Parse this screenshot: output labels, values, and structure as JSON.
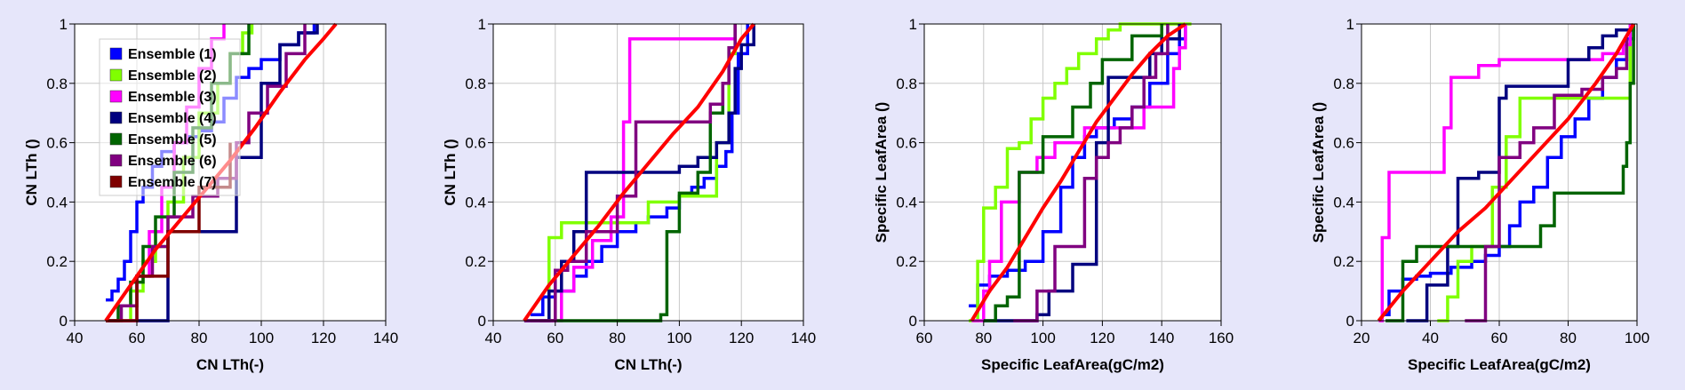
{
  "legend": {
    "entries": [
      {
        "label": "Ensemble (1)",
        "color": "#0000ff"
      },
      {
        "label": "Ensemble (2)",
        "color": "#80ff00"
      },
      {
        "label": "Ensemble (3)",
        "color": "#ff00ff"
      },
      {
        "label": "Ensemble (4)",
        "color": "#00007f"
      },
      {
        "label": "Ensemble (5)",
        "color": "#006400"
      },
      {
        "label": "Ensemble (6)",
        "color": "#800080"
      },
      {
        "label": "Ensemble (7)",
        "color": "#7f0000"
      }
    ]
  },
  "reference_color": "#ff0000",
  "chart_data": [
    {
      "type": "line",
      "xlabel": "CN LTh(-)",
      "ylabel": "CN LTh ()",
      "xlim": [
        40,
        140
      ],
      "ylim": [
        0,
        1
      ],
      "xticks": [
        "40",
        "60",
        "80",
        "100",
        "120",
        "140"
      ],
      "yticks": [
        "0",
        "0.2",
        "0.4",
        "0.6",
        "0.8",
        "1"
      ],
      "grid": true,
      "legend_position": "top-left",
      "series": [
        {
          "color": "#0000ff",
          "x": [
            50,
            52,
            54,
            56,
            58,
            60,
            62,
            65,
            68,
            72,
            76,
            80,
            84,
            88,
            92,
            96,
            100,
            106,
            112,
            117
          ],
          "y": [
            0.07,
            0.1,
            0.14,
            0.2,
            0.3,
            0.4,
            0.45,
            0.52,
            0.57,
            0.6,
            0.62,
            0.64,
            0.67,
            0.75,
            0.82,
            0.85,
            0.88,
            0.93,
            0.97,
            1.0
          ]
        },
        {
          "color": "#80ff00",
          "x": [
            53,
            58,
            62,
            66,
            70,
            75,
            80,
            86,
            90,
            94,
            97
          ],
          "y": [
            0.0,
            0.1,
            0.2,
            0.25,
            0.4,
            0.55,
            0.7,
            0.8,
            0.9,
            0.97,
            1.0
          ]
        },
        {
          "color": "#ff00ff",
          "x": [
            55,
            60,
            64,
            68,
            72,
            76,
            80,
            84,
            88
          ],
          "y": [
            0.0,
            0.15,
            0.3,
            0.45,
            0.6,
            0.72,
            0.85,
            0.95,
            1.0
          ]
        },
        {
          "color": "#00007f",
          "x": [
            60,
            70,
            90,
            92,
            96,
            100,
            106,
            112,
            118
          ],
          "y": [
            0.0,
            0.3,
            0.3,
            0.55,
            0.55,
            0.8,
            0.93,
            0.97,
            1.0
          ]
        },
        {
          "color": "#006400",
          "x": [
            50,
            54,
            58,
            62,
            66,
            72,
            78,
            84,
            90,
            96
          ],
          "y": [
            0.0,
            0.05,
            0.13,
            0.25,
            0.35,
            0.5,
            0.65,
            0.8,
            0.9,
            1.0
          ]
        },
        {
          "color": "#800080",
          "x": [
            50,
            55,
            60,
            65,
            70,
            78,
            86,
            92,
            96,
            102,
            108,
            114
          ],
          "y": [
            0.0,
            0.05,
            0.15,
            0.25,
            0.35,
            0.42,
            0.48,
            0.6,
            0.7,
            0.79,
            0.9,
            1.0
          ]
        },
        {
          "color": "#7f0000",
          "x": [
            50,
            60,
            70,
            80,
            90
          ],
          "y": [
            0.0,
            0.15,
            0.3,
            0.45,
            0.6
          ]
        },
        {
          "color": "#ff0000",
          "x": [
            50,
            58,
            66,
            74,
            82,
            90,
            98,
            106,
            114,
            120,
            124
          ],
          "y": [
            0.0,
            0.12,
            0.24,
            0.34,
            0.44,
            0.54,
            0.65,
            0.77,
            0.88,
            0.95,
            1.0
          ]
        }
      ]
    },
    {
      "type": "line",
      "xlabel": "CN LTh(-)",
      "ylabel": "CN LTh ()",
      "xlim": [
        40,
        140
      ],
      "ylim": [
        0,
        1
      ],
      "xticks": [
        "40",
        "60",
        "80",
        "100",
        "120",
        "140"
      ],
      "yticks": [
        "0",
        "0.2",
        "0.4",
        "0.6",
        "0.8",
        "1"
      ],
      "grid": true,
      "series": [
        {
          "color": "#0000ff",
          "x": [
            52,
            56,
            60,
            66,
            70,
            75,
            80,
            86,
            90,
            96,
            100,
            104,
            108,
            112,
            115,
            117,
            119,
            122
          ],
          "y": [
            0.02,
            0.08,
            0.1,
            0.15,
            0.2,
            0.25,
            0.3,
            0.33,
            0.35,
            0.38,
            0.42,
            0.45,
            0.48,
            0.52,
            0.57,
            0.7,
            0.9,
            1.0
          ]
        },
        {
          "color": "#80ff00",
          "x": [
            52,
            58,
            62,
            66,
            80,
            90,
            100,
            108,
            112,
            116,
            118
          ],
          "y": [
            0.0,
            0.28,
            0.33,
            0.33,
            0.33,
            0.4,
            0.42,
            0.42,
            0.6,
            0.9,
            1.0
          ]
        },
        {
          "color": "#ff00ff",
          "x": [
            55,
            62,
            66,
            72,
            78,
            82,
            84,
            86,
            90,
            100,
            114,
            118
          ],
          "y": [
            0.0,
            0.1,
            0.18,
            0.27,
            0.35,
            0.67,
            0.95,
            0.95,
            0.95,
            0.95,
            0.95,
            1.0
          ]
        },
        {
          "color": "#00007f",
          "x": [
            50,
            58,
            62,
            66,
            70,
            80,
            100,
            106,
            112,
            116,
            118,
            120,
            124
          ],
          "y": [
            0.0,
            0.1,
            0.2,
            0.3,
            0.5,
            0.5,
            0.52,
            0.55,
            0.6,
            0.7,
            0.85,
            0.93,
            1.0
          ]
        },
        {
          "color": "#006400",
          "x": [
            55,
            75,
            94,
            96,
            100,
            106,
            110,
            114,
            116,
            118
          ],
          "y": [
            0.0,
            0.0,
            0.02,
            0.3,
            0.43,
            0.5,
            0.7,
            0.8,
            0.92,
            1.0
          ]
        },
        {
          "color": "#800080",
          "x": [
            50,
            60,
            64,
            70,
            80,
            86,
            96,
            104,
            110,
            114,
            116,
            118
          ],
          "y": [
            0.0,
            0.17,
            0.2,
            0.3,
            0.42,
            0.67,
            0.67,
            0.67,
            0.73,
            0.8,
            0.92,
            1.0
          ]
        },
        {
          "color": "#ff0000",
          "x": [
            50,
            58,
            66,
            74,
            82,
            90,
            98,
            106,
            114,
            120,
            124
          ],
          "y": [
            0.0,
            0.12,
            0.22,
            0.32,
            0.43,
            0.53,
            0.63,
            0.72,
            0.84,
            0.95,
            1.0
          ]
        }
      ]
    },
    {
      "type": "line",
      "xlabel": "Specific LeafArea(gC/m2)",
      "ylabel": "Specific LeafArea ()",
      "xlim": [
        60,
        160
      ],
      "ylim": [
        0,
        1
      ],
      "xticks": [
        "60",
        "80",
        "100",
        "120",
        "140",
        "160"
      ],
      "yticks": [
        "0",
        "0.2",
        "0.4",
        "0.6",
        "0.8",
        "1"
      ],
      "grid": true,
      "series": [
        {
          "color": "#0000ff",
          "x": [
            75,
            78,
            82,
            88,
            94,
            100,
            106,
            110,
            114,
            118,
            124,
            130,
            136,
            142,
            146,
            148
          ],
          "y": [
            0.05,
            0.12,
            0.15,
            0.17,
            0.2,
            0.3,
            0.45,
            0.55,
            0.62,
            0.65,
            0.68,
            0.72,
            0.8,
            0.9,
            0.95,
            1.0
          ]
        },
        {
          "color": "#80ff00",
          "x": [
            75,
            78,
            80,
            84,
            88,
            92,
            96,
            100,
            104,
            108,
            112,
            118,
            122,
            126,
            150
          ],
          "y": [
            0.0,
            0.2,
            0.38,
            0.45,
            0.58,
            0.6,
            0.68,
            0.75,
            0.8,
            0.85,
            0.9,
            0.95,
            0.98,
            1.0,
            1.0
          ]
        },
        {
          "color": "#ff00ff",
          "x": [
            76,
            80,
            82,
            86,
            92,
            98,
            104,
            114,
            120,
            126,
            134,
            140,
            144,
            146,
            148
          ],
          "y": [
            0.0,
            0.1,
            0.2,
            0.4,
            0.5,
            0.55,
            0.6,
            0.65,
            0.65,
            0.65,
            0.72,
            0.72,
            0.85,
            0.92,
            1.0
          ]
        },
        {
          "color": "#00007f",
          "x": [
            80,
            88,
            98,
            102,
            110,
            116,
            118,
            122,
            130,
            134,
            136,
            140,
            146
          ],
          "y": [
            0.0,
            0.0,
            0.02,
            0.1,
            0.19,
            0.19,
            0.6,
            0.82,
            0.82,
            0.82,
            0.9,
            0.95,
            1.0
          ]
        },
        {
          "color": "#006400",
          "x": [
            80,
            84,
            88,
            92,
            100,
            110,
            116,
            120,
            130,
            140
          ],
          "y": [
            0.0,
            0.05,
            0.08,
            0.5,
            0.62,
            0.72,
            0.8,
            0.88,
            0.96,
            1.0
          ]
        },
        {
          "color": "#800080",
          "x": [
            90,
            98,
            104,
            110,
            114,
            118,
            122,
            126,
            130,
            134,
            138,
            142
          ],
          "y": [
            0.0,
            0.1,
            0.25,
            0.25,
            0.48,
            0.55,
            0.6,
            0.65,
            0.72,
            0.82,
            0.9,
            1.0
          ]
        },
        {
          "color": "#ff0000",
          "x": [
            76,
            82,
            88,
            94,
            100,
            106,
            112,
            118,
            124,
            130,
            136,
            142,
            148
          ],
          "y": [
            0.0,
            0.1,
            0.18,
            0.28,
            0.38,
            0.47,
            0.57,
            0.67,
            0.75,
            0.83,
            0.9,
            0.96,
            1.0
          ]
        }
      ]
    },
    {
      "type": "line",
      "xlabel": "Specific LeafArea(gC/m2)",
      "ylabel": "Specific LeafArea ()",
      "xlim": [
        20,
        100
      ],
      "ylim": [
        0,
        1
      ],
      "xticks": [
        "20",
        "40",
        "60",
        "80",
        "100"
      ],
      "yticks": [
        "0",
        "0.2",
        "0.4",
        "0.6",
        "0.8",
        "1"
      ],
      "grid": true,
      "series": [
        {
          "color": "#0000ff",
          "x": [
            26,
            28,
            32,
            36,
            40,
            46,
            52,
            56,
            60,
            63,
            66,
            70,
            74,
            78,
            82,
            86,
            90,
            94,
            97,
            99
          ],
          "y": [
            0.02,
            0.1,
            0.14,
            0.15,
            0.16,
            0.18,
            0.2,
            0.22,
            0.25,
            0.32,
            0.4,
            0.45,
            0.55,
            0.62,
            0.68,
            0.75,
            0.82,
            0.88,
            0.95,
            1.0
          ]
        },
        {
          "color": "#80ff00",
          "x": [
            42,
            45,
            48,
            52,
            58,
            62,
            66,
            70,
            80,
            96,
            98
          ],
          "y": [
            0.0,
            0.08,
            0.2,
            0.25,
            0.45,
            0.62,
            0.75,
            0.75,
            0.75,
            0.75,
            1.0
          ]
        },
        {
          "color": "#ff00ff",
          "x": [
            25,
            26,
            28,
            32,
            36,
            40,
            44,
            46,
            48,
            54,
            60,
            66,
            72,
            80,
            90,
            96,
            98
          ],
          "y": [
            0.0,
            0.28,
            0.5,
            0.5,
            0.5,
            0.5,
            0.65,
            0.82,
            0.82,
            0.86,
            0.88,
            0.88,
            0.88,
            0.88,
            0.9,
            0.93,
            1.0
          ]
        },
        {
          "color": "#00007f",
          "x": [
            33,
            39,
            42,
            45,
            48,
            54,
            60,
            62,
            66,
            72,
            80,
            86,
            90,
            94,
            97,
            99
          ],
          "y": [
            0.0,
            0.12,
            0.12,
            0.25,
            0.48,
            0.5,
            0.75,
            0.79,
            0.79,
            0.79,
            0.88,
            0.92,
            0.96,
            0.98,
            0.98,
            1.0
          ]
        },
        {
          "color": "#006400",
          "x": [
            27,
            32,
            36,
            40,
            48,
            54,
            60,
            66,
            72,
            76,
            86,
            94,
            96,
            97,
            98,
            99
          ],
          "y": [
            0.0,
            0.2,
            0.25,
            0.25,
            0.25,
            0.25,
            0.25,
            0.25,
            0.32,
            0.43,
            0.43,
            0.43,
            0.52,
            0.6,
            0.8,
            1.0
          ]
        },
        {
          "color": "#800080",
          "x": [
            50,
            56,
            60,
            66,
            70,
            76,
            84,
            90,
            94,
            97
          ],
          "y": [
            0.0,
            0.25,
            0.55,
            0.6,
            0.65,
            0.76,
            0.78,
            0.82,
            0.85,
            0.95
          ]
        },
        {
          "color": "#ff0000",
          "x": [
            25,
            32,
            40,
            48,
            56,
            64,
            72,
            80,
            88,
            94,
            99
          ],
          "y": [
            0.0,
            0.1,
            0.2,
            0.3,
            0.38,
            0.48,
            0.58,
            0.68,
            0.8,
            0.9,
            1.0
          ]
        }
      ]
    }
  ]
}
